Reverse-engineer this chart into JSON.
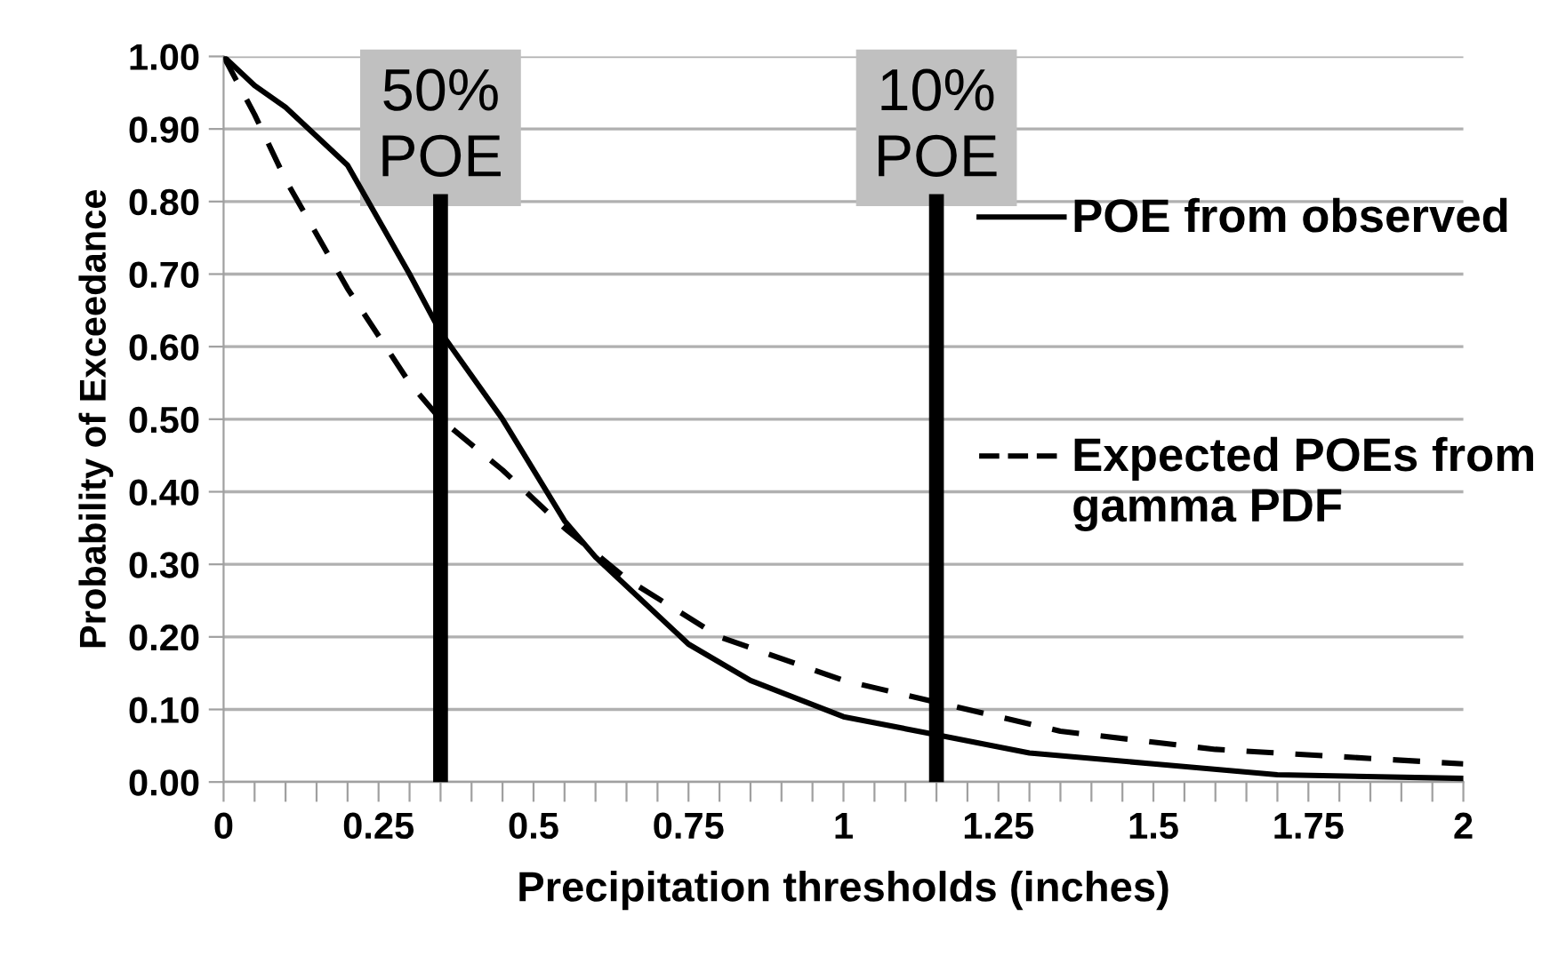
{
  "chart_data": {
    "type": "line",
    "xlabel": "Precipitation thresholds (inches)",
    "ylabel": "Probability of Exceedance",
    "series": [
      {
        "name": "POE from observed",
        "color": "#000000",
        "line_style": "solid",
        "x": [
          0,
          0.05,
          0.1,
          0.2,
          0.3,
          0.35,
          0.45,
          0.55,
          0.6,
          0.75,
          0.85,
          1,
          1.15,
          1.3,
          1.5,
          1.7,
          2
        ],
        "values": [
          1.0,
          0.96,
          0.93,
          0.85,
          0.7,
          0.62,
          0.5,
          0.36,
          0.31,
          0.19,
          0.14,
          0.09,
          0.065,
          0.04,
          0.025,
          0.01,
          0.005
        ]
      },
      {
        "name": "Expected POEs from gamma PDF",
        "color": "#000000",
        "line_style": "dashed",
        "x": [
          0,
          0.05,
          0.1,
          0.2,
          0.3,
          0.35,
          0.45,
          0.55,
          0.65,
          0.8,
          1,
          1.15,
          1.35,
          1.6,
          2
        ],
        "values": [
          1.0,
          0.92,
          0.83,
          0.68,
          0.55,
          0.5,
          0.43,
          0.35,
          0.28,
          0.2,
          0.14,
          0.11,
          0.07,
          0.045,
          0.025
        ]
      }
    ],
    "xlim": [
      0,
      2
    ],
    "xticks": [
      0,
      {
        "value": 0.05,
        "label": null
      },
      {
        "value": 0.1,
        "label": null
      },
      {
        "value": 0.15,
        "label": null
      },
      {
        "value": 0.2,
        "label": null
      },
      0.25,
      {
        "value": 0.3,
        "label": null
      },
      {
        "value": 0.35,
        "label": null
      },
      {
        "value": 0.4,
        "label": null
      },
      {
        "value": 0.45,
        "label": null
      },
      0.5,
      {
        "value": 0.55,
        "label": null
      },
      {
        "value": 0.6,
        "label": null
      },
      {
        "value": 0.65,
        "label": null
      },
      {
        "value": 0.7,
        "label": null
      },
      0.75,
      {
        "value": 0.8,
        "label": null
      },
      {
        "value": 0.85,
        "label": null
      },
      {
        "value": 0.9,
        "label": null
      },
      {
        "value": 0.95,
        "label": null
      },
      1,
      {
        "value": 1.05,
        "label": null
      },
      {
        "value": 1.1,
        "label": null
      },
      {
        "value": 1.15,
        "label": null
      },
      {
        "value": 1.2,
        "label": null
      },
      1.25,
      {
        "value": 1.3,
        "label": null
      },
      {
        "value": 1.35,
        "label": null
      },
      {
        "value": 1.4,
        "label": null
      },
      {
        "value": 1.45,
        "label": null
      },
      1.5,
      {
        "value": 1.55,
        "label": null
      },
      {
        "value": 1.6,
        "label": null
      },
      {
        "value": 1.65,
        "label": null
      },
      {
        "value": 1.7,
        "label": null
      },
      1.75,
      {
        "value": 1.8,
        "label": null
      },
      {
        "value": 1.85,
        "label": null
      },
      {
        "value": 1.9,
        "label": null
      },
      {
        "value": 1.95,
        "label": null
      },
      2
    ],
    "ylim": [
      0,
      1
    ],
    "yticks": [
      {
        "value": 0,
        "label": "0.00"
      },
      {
        "value": 0.1,
        "label": "0.10"
      },
      {
        "value": 0.2,
        "label": "0.20"
      },
      {
        "value": 0.3,
        "label": "0.30"
      },
      {
        "value": 0.4,
        "label": "0.40"
      },
      {
        "value": 0.5,
        "label": "0.50"
      },
      {
        "value": 0.6,
        "label": "0.60"
      },
      {
        "value": 0.7,
        "label": "0.70"
      },
      {
        "value": 0.8,
        "label": "0.80"
      },
      {
        "value": 0.9,
        "label": "0.90"
      },
      {
        "value": 1,
        "label": "1.00"
      }
    ],
    "ref_lines": [
      {
        "axis": "x",
        "value": 0.35,
        "label": "50%\nPOE",
        "color": "#000000"
      },
      {
        "axis": "x",
        "value": 1.15,
        "label": "10%\nPOE",
        "color": "#000000"
      }
    ],
    "grid": "y",
    "legend": "right",
    "marker": "none"
  }
}
